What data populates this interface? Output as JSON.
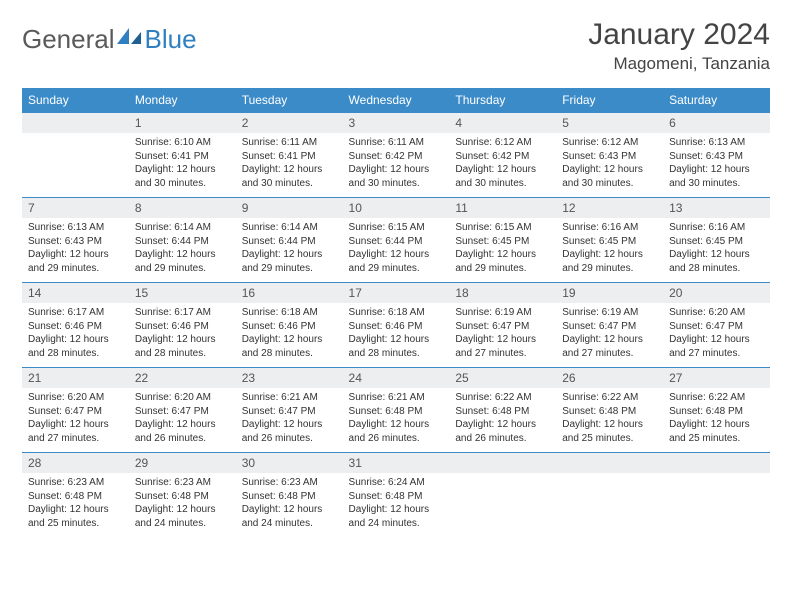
{
  "brand": {
    "part1": "General",
    "part2": "Blue"
  },
  "title": "January 2024",
  "location": "Magomeni, Tanzania",
  "colors": {
    "header_bg": "#3b8bc9",
    "header_text": "#ffffff",
    "daynum_bg": "#eceef0",
    "border": "#3b8bc9",
    "brand_blue": "#2f7fc1"
  },
  "dayHeaders": [
    "Sunday",
    "Monday",
    "Tuesday",
    "Wednesday",
    "Thursday",
    "Friday",
    "Saturday"
  ],
  "weeks": [
    [
      {
        "n": "",
        "lines": []
      },
      {
        "n": "1",
        "lines": [
          "Sunrise: 6:10 AM",
          "Sunset: 6:41 PM",
          "Daylight: 12 hours",
          "and 30 minutes."
        ]
      },
      {
        "n": "2",
        "lines": [
          "Sunrise: 6:11 AM",
          "Sunset: 6:41 PM",
          "Daylight: 12 hours",
          "and 30 minutes."
        ]
      },
      {
        "n": "3",
        "lines": [
          "Sunrise: 6:11 AM",
          "Sunset: 6:42 PM",
          "Daylight: 12 hours",
          "and 30 minutes."
        ]
      },
      {
        "n": "4",
        "lines": [
          "Sunrise: 6:12 AM",
          "Sunset: 6:42 PM",
          "Daylight: 12 hours",
          "and 30 minutes."
        ]
      },
      {
        "n": "5",
        "lines": [
          "Sunrise: 6:12 AM",
          "Sunset: 6:43 PM",
          "Daylight: 12 hours",
          "and 30 minutes."
        ]
      },
      {
        "n": "6",
        "lines": [
          "Sunrise: 6:13 AM",
          "Sunset: 6:43 PM",
          "Daylight: 12 hours",
          "and 30 minutes."
        ]
      }
    ],
    [
      {
        "n": "7",
        "lines": [
          "Sunrise: 6:13 AM",
          "Sunset: 6:43 PM",
          "Daylight: 12 hours",
          "and 29 minutes."
        ]
      },
      {
        "n": "8",
        "lines": [
          "Sunrise: 6:14 AM",
          "Sunset: 6:44 PM",
          "Daylight: 12 hours",
          "and 29 minutes."
        ]
      },
      {
        "n": "9",
        "lines": [
          "Sunrise: 6:14 AM",
          "Sunset: 6:44 PM",
          "Daylight: 12 hours",
          "and 29 minutes."
        ]
      },
      {
        "n": "10",
        "lines": [
          "Sunrise: 6:15 AM",
          "Sunset: 6:44 PM",
          "Daylight: 12 hours",
          "and 29 minutes."
        ]
      },
      {
        "n": "11",
        "lines": [
          "Sunrise: 6:15 AM",
          "Sunset: 6:45 PM",
          "Daylight: 12 hours",
          "and 29 minutes."
        ]
      },
      {
        "n": "12",
        "lines": [
          "Sunrise: 6:16 AM",
          "Sunset: 6:45 PM",
          "Daylight: 12 hours",
          "and 29 minutes."
        ]
      },
      {
        "n": "13",
        "lines": [
          "Sunrise: 6:16 AM",
          "Sunset: 6:45 PM",
          "Daylight: 12 hours",
          "and 28 minutes."
        ]
      }
    ],
    [
      {
        "n": "14",
        "lines": [
          "Sunrise: 6:17 AM",
          "Sunset: 6:46 PM",
          "Daylight: 12 hours",
          "and 28 minutes."
        ]
      },
      {
        "n": "15",
        "lines": [
          "Sunrise: 6:17 AM",
          "Sunset: 6:46 PM",
          "Daylight: 12 hours",
          "and 28 minutes."
        ]
      },
      {
        "n": "16",
        "lines": [
          "Sunrise: 6:18 AM",
          "Sunset: 6:46 PM",
          "Daylight: 12 hours",
          "and 28 minutes."
        ]
      },
      {
        "n": "17",
        "lines": [
          "Sunrise: 6:18 AM",
          "Sunset: 6:46 PM",
          "Daylight: 12 hours",
          "and 28 minutes."
        ]
      },
      {
        "n": "18",
        "lines": [
          "Sunrise: 6:19 AM",
          "Sunset: 6:47 PM",
          "Daylight: 12 hours",
          "and 27 minutes."
        ]
      },
      {
        "n": "19",
        "lines": [
          "Sunrise: 6:19 AM",
          "Sunset: 6:47 PM",
          "Daylight: 12 hours",
          "and 27 minutes."
        ]
      },
      {
        "n": "20",
        "lines": [
          "Sunrise: 6:20 AM",
          "Sunset: 6:47 PM",
          "Daylight: 12 hours",
          "and 27 minutes."
        ]
      }
    ],
    [
      {
        "n": "21",
        "lines": [
          "Sunrise: 6:20 AM",
          "Sunset: 6:47 PM",
          "Daylight: 12 hours",
          "and 27 minutes."
        ]
      },
      {
        "n": "22",
        "lines": [
          "Sunrise: 6:20 AM",
          "Sunset: 6:47 PM",
          "Daylight: 12 hours",
          "and 26 minutes."
        ]
      },
      {
        "n": "23",
        "lines": [
          "Sunrise: 6:21 AM",
          "Sunset: 6:47 PM",
          "Daylight: 12 hours",
          "and 26 minutes."
        ]
      },
      {
        "n": "24",
        "lines": [
          "Sunrise: 6:21 AM",
          "Sunset: 6:48 PM",
          "Daylight: 12 hours",
          "and 26 minutes."
        ]
      },
      {
        "n": "25",
        "lines": [
          "Sunrise: 6:22 AM",
          "Sunset: 6:48 PM",
          "Daylight: 12 hours",
          "and 26 minutes."
        ]
      },
      {
        "n": "26",
        "lines": [
          "Sunrise: 6:22 AM",
          "Sunset: 6:48 PM",
          "Daylight: 12 hours",
          "and 25 minutes."
        ]
      },
      {
        "n": "27",
        "lines": [
          "Sunrise: 6:22 AM",
          "Sunset: 6:48 PM",
          "Daylight: 12 hours",
          "and 25 minutes."
        ]
      }
    ],
    [
      {
        "n": "28",
        "lines": [
          "Sunrise: 6:23 AM",
          "Sunset: 6:48 PM",
          "Daylight: 12 hours",
          "and 25 minutes."
        ]
      },
      {
        "n": "29",
        "lines": [
          "Sunrise: 6:23 AM",
          "Sunset: 6:48 PM",
          "Daylight: 12 hours",
          "and 24 minutes."
        ]
      },
      {
        "n": "30",
        "lines": [
          "Sunrise: 6:23 AM",
          "Sunset: 6:48 PM",
          "Daylight: 12 hours",
          "and 24 minutes."
        ]
      },
      {
        "n": "31",
        "lines": [
          "Sunrise: 6:24 AM",
          "Sunset: 6:48 PM",
          "Daylight: 12 hours",
          "and 24 minutes."
        ]
      },
      {
        "n": "",
        "lines": []
      },
      {
        "n": "",
        "lines": []
      },
      {
        "n": "",
        "lines": []
      }
    ]
  ]
}
